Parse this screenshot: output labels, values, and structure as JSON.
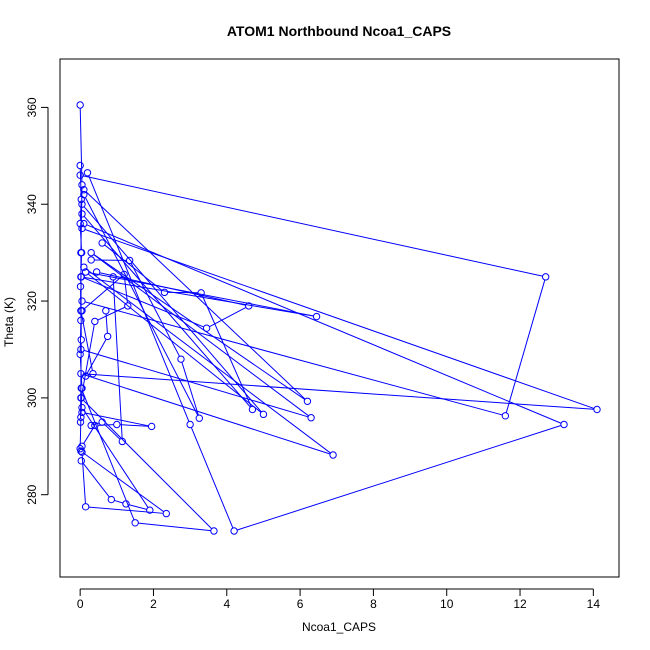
{
  "chart_data": {
    "type": "line",
    "title": "ATOM1 Northbound Ncoa1_CAPS",
    "xlabel": "Ncoa1_CAPS",
    "ylabel": "Theta (K)",
    "xlim": [
      -0.55,
      14.7
    ],
    "ylim": [
      263,
      370
    ],
    "xticks": [
      0,
      2,
      4,
      6,
      8,
      10,
      12,
      14
    ],
    "yticks": [
      280,
      300,
      320,
      340,
      360
    ],
    "grid": false,
    "legend": "none",
    "series_color": "#0000ff",
    "series": [
      {
        "x": [
          0.0,
          0.05,
          0.02,
          0.03,
          0.01
        ],
        "y": [
          360.5,
          344.0,
          330.0,
          312.0,
          295.0
        ]
      },
      {
        "x": [
          0.0,
          12.7,
          11.6,
          0.05
        ],
        "y": [
          346.0,
          325.0,
          296.3,
          320.0
        ]
      },
      {
        "x": [
          0.2,
          3.0,
          4.2,
          13.2,
          0.1
        ],
        "y": [
          346.5,
          294.5,
          272.5,
          294.5,
          336.0
        ]
      },
      {
        "x": [
          0.1,
          6.2,
          0.3,
          6.3,
          0.02
        ],
        "y": [
          343.0,
          299.3,
          330.0,
          295.9,
          310.0
        ]
      },
      {
        "x": [
          0.05,
          14.1,
          0.02,
          6.9,
          0.1
        ],
        "y": [
          335.0,
          297.6,
          305.0,
          288.2,
          327.0
        ]
      },
      {
        "x": [
          0.02,
          6.45,
          0.15,
          5.0,
          0.05
        ],
        "y": [
          325.0,
          316.8,
          326.0,
          296.6,
          340.0
        ]
      },
      {
        "x": [
          0.6,
          2.3,
          3.3,
          4.7,
          0.05
        ],
        "y": [
          332.0,
          321.8,
          321.7,
          297.6,
          338.0
        ]
      },
      {
        "x": [
          0.3,
          1.35,
          2.75,
          3.25,
          0.1
        ],
        "y": [
          328.5,
          328.4,
          308.0,
          295.8,
          342.0
        ]
      },
      {
        "x": [
          0.45,
          4.6,
          3.45,
          0.03
        ],
        "y": [
          326.0,
          319.0,
          314.4,
          325.0
        ]
      },
      {
        "x": [
          0.05,
          1.2,
          1.3,
          0.4,
          0.03
        ],
        "y": [
          318.0,
          325.5,
          319.0,
          315.8,
          300.0
        ]
      },
      {
        "x": [
          0.7,
          0.75,
          0.15,
          0.35,
          0.02
        ],
        "y": [
          318.0,
          312.7,
          304.5,
          305.0,
          318.0
        ]
      },
      {
        "x": [
          0.9,
          1.15,
          0.6,
          0.3
        ],
        "y": [
          325.0,
          291.0,
          295.0,
          294.3
        ]
      },
      {
        "x": [
          0.05,
          1.95,
          1.0,
          0.4,
          0.05
        ],
        "y": [
          297.0,
          294.1,
          294.5,
          294.3,
          290.0
        ]
      },
      {
        "x": [
          0.02,
          3.65,
          1.5,
          0.03
        ],
        "y": [
          300.0,
          272.5,
          274.2,
          302.0
        ]
      },
      {
        "x": [
          0.05,
          1.9,
          1.25,
          0.85,
          0.03
        ],
        "y": [
          298.0,
          276.8,
          278.1,
          279.0,
          287.0
        ]
      },
      {
        "x": [
          0.02,
          2.35,
          0.15,
          0.05
        ],
        "y": [
          289.0,
          276.1,
          277.5,
          288.8
        ]
      },
      {
        "x": [
          0.0,
          0.03,
          0.0,
          0.04,
          0.01,
          0.02,
          0.0,
          0.05,
          0.02,
          0.0
        ],
        "y": [
          348.0,
          341.0,
          336.0,
          330.0,
          323.0,
          316.0,
          309.0,
          302.0,
          296.0,
          289.5
        ]
      }
    ]
  }
}
